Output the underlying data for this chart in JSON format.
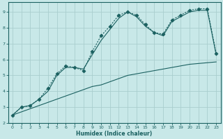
{
  "xlabel": "Humidex (Indice chaleur)",
  "bg_color": "#c8e8e8",
  "grid_color": "#aacece",
  "line_color": "#1a6060",
  "xlim": [
    -0.5,
    23.5
  ],
  "ylim": [
    2,
    9.6
  ],
  "xticks": [
    0,
    1,
    2,
    3,
    4,
    5,
    6,
    7,
    8,
    9,
    10,
    11,
    12,
    13,
    14,
    15,
    16,
    17,
    18,
    19,
    20,
    21,
    22,
    23
  ],
  "yticks": [
    2,
    3,
    4,
    5,
    6,
    7,
    8,
    9
  ],
  "line1_x": [
    0,
    1,
    2,
    3,
    4,
    5,
    6,
    7,
    8,
    9,
    10,
    11,
    12,
    13,
    14,
    15,
    16,
    17,
    18,
    19,
    20,
    21,
    22,
    23
  ],
  "line1_y": [
    2.5,
    3.0,
    3.1,
    3.5,
    4.2,
    5.1,
    5.6,
    5.5,
    5.3,
    6.5,
    7.5,
    8.1,
    8.8,
    9.0,
    8.8,
    8.2,
    7.7,
    7.6,
    8.5,
    8.8,
    9.1,
    9.2,
    9.2,
    6.4
  ],
  "line2_x": [
    0,
    1,
    2,
    3,
    4,
    5,
    6,
    7,
    8,
    9,
    10,
    11,
    12,
    13,
    14,
    15,
    16,
    17,
    18,
    19,
    20,
    21,
    22,
    23
  ],
  "line2_y": [
    2.5,
    3.0,
    3.1,
    3.5,
    4.0,
    5.0,
    5.5,
    5.5,
    5.4,
    6.3,
    7.2,
    7.9,
    8.6,
    9.0,
    8.7,
    8.1,
    7.7,
    7.5,
    8.4,
    8.7,
    9.0,
    9.1,
    9.1,
    6.3
  ],
  "line3_x": [
    0,
    1,
    2,
    3,
    4,
    5,
    6,
    7,
    8,
    9,
    10,
    11,
    12,
    13,
    14,
    15,
    16,
    17,
    18,
    19,
    20,
    21,
    22,
    23
  ],
  "line3_y": [
    2.5,
    2.7,
    2.9,
    3.1,
    3.3,
    3.5,
    3.7,
    3.9,
    4.1,
    4.3,
    4.4,
    4.6,
    4.8,
    5.0,
    5.1,
    5.2,
    5.3,
    5.4,
    5.5,
    5.6,
    5.7,
    5.75,
    5.8,
    5.85
  ]
}
